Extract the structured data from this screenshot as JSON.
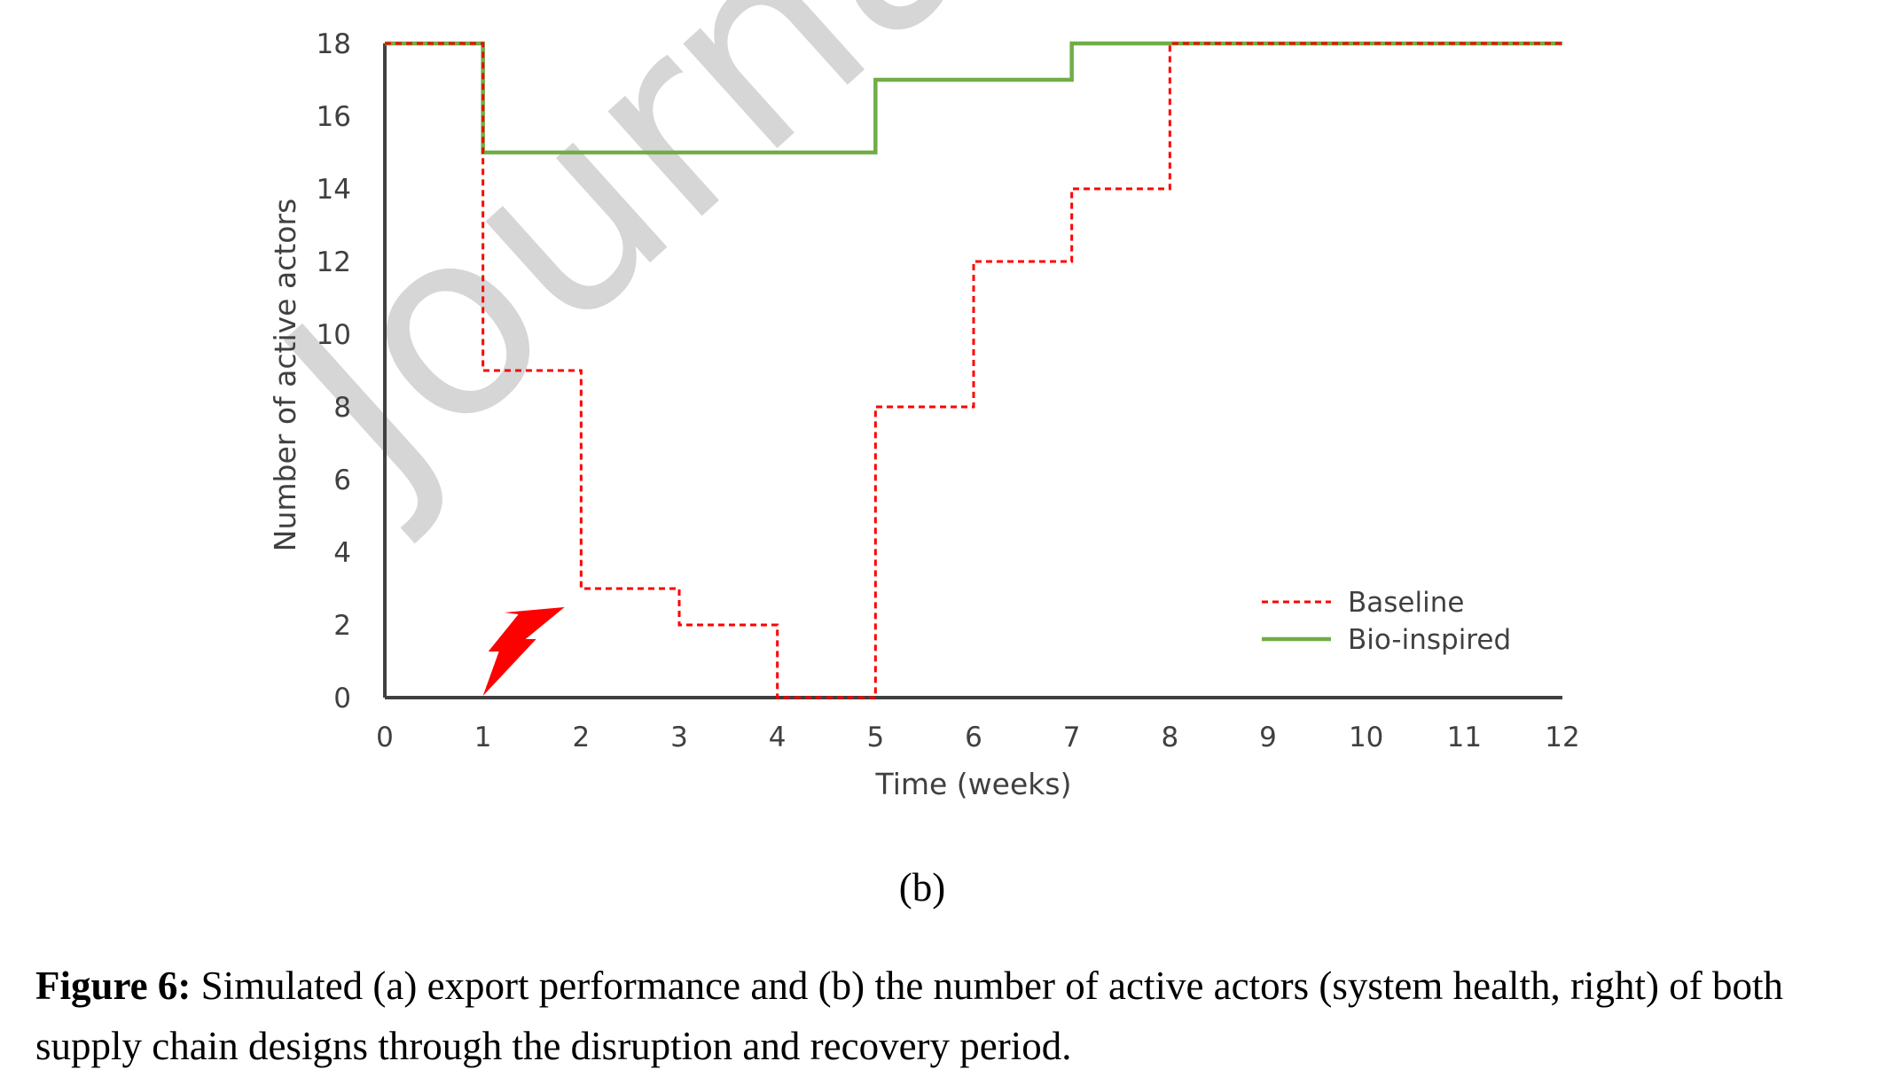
{
  "chart_data": {
    "type": "line",
    "step": true,
    "title": "",
    "xlabel": "Time (weeks)",
    "ylabel": "Number of active actors",
    "xlim": [
      0,
      12
    ],
    "ylim": [
      0,
      18
    ],
    "x_ticks": [
      0,
      1,
      2,
      3,
      4,
      5,
      6,
      7,
      8,
      9,
      10,
      11,
      12
    ],
    "y_ticks": [
      0,
      2,
      4,
      6,
      8,
      10,
      12,
      14,
      16,
      18
    ],
    "grid": false,
    "legend_position": "bottom-right",
    "series": [
      {
        "name": "Baseline",
        "style": "dashed",
        "color": "#ff0000",
        "x": [
          0,
          1,
          2,
          3,
          4,
          5,
          6,
          7,
          8,
          9,
          10,
          11,
          12
        ],
        "y": [
          18,
          9,
          3,
          2,
          0,
          8,
          12,
          14,
          18,
          18,
          18,
          18,
          18
        ]
      },
      {
        "name": "Bio-inspired",
        "style": "solid",
        "color": "#70ad47",
        "x": [
          0,
          1,
          2,
          3,
          4,
          5,
          6,
          7,
          8,
          9,
          10,
          11,
          12
        ],
        "y": [
          18,
          15,
          15,
          15,
          15,
          17,
          17,
          18,
          18,
          18,
          18,
          18,
          18
        ]
      }
    ],
    "annotations": [
      {
        "type": "lightning-icon",
        "x": 1,
        "y": 0,
        "color": "#ff0000"
      }
    ]
  },
  "watermark": "Journal",
  "panel_label": "(b)",
  "caption": {
    "label": "Figure 6:",
    "text": " Simulated (a) export performance and (b) the number of active actors (system health, right) of both supply chain designs through the disruption and recovery period."
  }
}
